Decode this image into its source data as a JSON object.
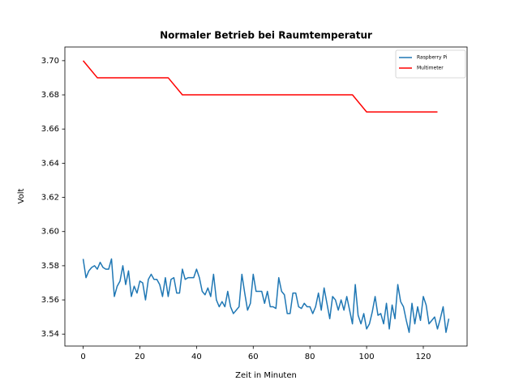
{
  "chart_data": {
    "type": "line",
    "title": "Normaler Betrieb bei Raumtemperatur",
    "x_label": "Zeit in Minuten",
    "y_label": "Volt",
    "xlim": [
      -6.45,
      135.45
    ],
    "ylim": [
      3.533,
      3.708
    ],
    "xticks": [
      0,
      20,
      40,
      60,
      80,
      100,
      120
    ],
    "yticks": [
      3.54,
      3.56,
      3.58,
      {
        "value": 3.6,
        "label": "3.60"
      },
      3.62,
      3.64,
      3.66,
      3.68,
      {
        "value": 3.7,
        "label": "3.70"
      }
    ],
    "grid": false,
    "legend": "upper right",
    "series": [
      {
        "name": "Raspberry Pi",
        "color": "#1f77b4",
        "x": [
          0,
          1,
          2,
          3,
          4,
          5,
          6,
          7,
          8,
          9,
          10,
          11,
          12,
          13,
          14,
          15,
          16,
          17,
          18,
          19,
          20,
          21,
          22,
          23,
          24,
          25,
          26,
          27,
          28,
          29,
          30,
          31,
          32,
          33,
          34,
          35,
          36,
          37,
          38,
          39,
          40,
          41,
          42,
          43,
          44,
          45,
          46,
          47,
          48,
          49,
          50,
          51,
          52,
          53,
          54,
          55,
          56,
          57,
          58,
          59,
          60,
          61,
          62,
          63,
          64,
          65,
          66,
          67,
          68,
          69,
          70,
          71,
          72,
          73,
          74,
          75,
          76,
          77,
          78,
          79,
          80,
          81,
          82,
          83,
          84,
          85,
          86,
          87,
          88,
          89,
          90,
          91,
          92,
          93,
          94,
          95,
          96,
          97,
          98,
          99,
          100,
          101,
          102,
          103,
          104,
          105,
          106,
          107,
          108,
          109,
          110,
          111,
          112,
          113,
          114,
          115,
          116,
          117,
          118,
          119,
          120,
          121,
          122,
          123,
          124,
          125,
          126,
          127,
          128,
          129
        ],
        "values": [
          3.584,
          3.573,
          3.577,
          3.579,
          3.58,
          3.578,
          3.582,
          3.579,
          3.578,
          3.578,
          3.584,
          3.562,
          3.568,
          3.571,
          3.58,
          3.569,
          3.577,
          3.562,
          3.568,
          3.564,
          3.571,
          3.57,
          3.56,
          3.572,
          3.575,
          3.572,
          3.572,
          3.569,
          3.562,
          3.573,
          3.562,
          3.572,
          3.573,
          3.564,
          3.564,
          3.578,
          3.572,
          3.573,
          3.573,
          3.573,
          3.578,
          3.573,
          3.565,
          3.563,
          3.567,
          3.562,
          3.575,
          3.56,
          3.556,
          3.559,
          3.556,
          3.565,
          3.556,
          3.552,
          3.554,
          3.556,
          3.575,
          3.564,
          3.554,
          3.558,
          3.575,
          3.565,
          3.565,
          3.565,
          3.558,
          3.565,
          3.556,
          3.556,
          3.555,
          3.573,
          3.565,
          3.563,
          3.552,
          3.552,
          3.564,
          3.564,
          3.556,
          3.555,
          3.558,
          3.556,
          3.556,
          3.552,
          3.556,
          3.564,
          3.554,
          3.567,
          3.558,
          3.549,
          3.562,
          3.56,
          3.554,
          3.56,
          3.554,
          3.562,
          3.554,
          3.546,
          3.569,
          3.551,
          3.546,
          3.552,
          3.543,
          3.546,
          3.553,
          3.562,
          3.551,
          3.552,
          3.546,
          3.558,
          3.543,
          3.557,
          3.549,
          3.569,
          3.559,
          3.556,
          3.548,
          3.541,
          3.558,
          3.546,
          3.556,
          3.548,
          3.562,
          3.557,
          3.546,
          3.548,
          3.55,
          3.543,
          3.549,
          3.556,
          3.541,
          3.549
        ]
      },
      {
        "name": "Multimeter",
        "color": "#ff0000",
        "x": [
          0,
          5,
          10,
          15,
          20,
          25,
          30,
          35,
          40,
          45,
          50,
          55,
          60,
          65,
          70,
          75,
          80,
          85,
          90,
          95,
          100,
          105,
          110,
          115,
          120,
          125
        ],
        "values": [
          3.7,
          3.69,
          3.69,
          3.69,
          3.69,
          3.69,
          3.69,
          3.68,
          3.68,
          3.68,
          3.68,
          3.68,
          3.68,
          3.68,
          3.68,
          3.68,
          3.68,
          3.68,
          3.68,
          3.68,
          3.67,
          3.67,
          3.67,
          3.67,
          3.67,
          3.67
        ]
      }
    ]
  }
}
